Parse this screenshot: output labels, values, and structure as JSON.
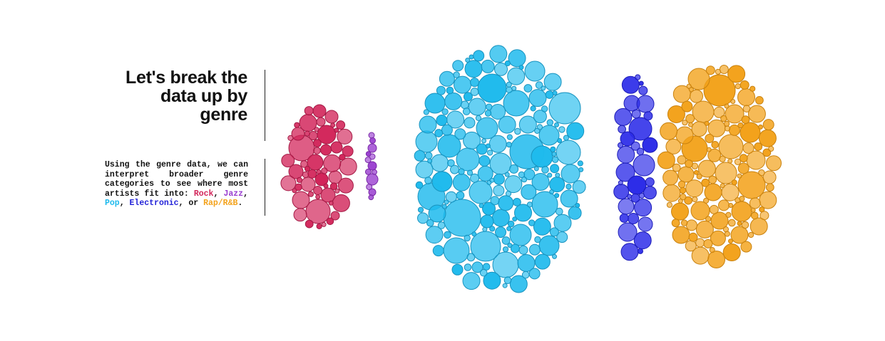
{
  "heading": {
    "line1": "Let's break the",
    "line2": "data up by",
    "line3": "genre"
  },
  "description": {
    "intro": "Using the genre data, we can interpret broader genre categories to see where most artists fit into: ",
    "rock": "Rock",
    "sep1": ", ",
    "jazz": "Jazz",
    "sep2": ", ",
    "pop": "Pop",
    "sep3": ", ",
    "electronic": "Electronic",
    "sep4": ", or ",
    "rap": "Rap/R&B",
    "end": "."
  },
  "genres": [
    {
      "id": "rock",
      "name": "Rock",
      "color": "#d2255a",
      "stroke": "#a41a45"
    },
    {
      "id": "jazz",
      "name": "Jazz",
      "color": "#9a3fd0",
      "stroke": "#7a2aa8"
    },
    {
      "id": "pop",
      "name": "Pop",
      "color": "#1ebaed",
      "stroke": "#1893bf"
    },
    {
      "id": "electronic",
      "name": "Electronic",
      "color": "#2b2be8",
      "stroke": "#1c1cb8"
    },
    {
      "id": "rap",
      "name": "Rap/R&B",
      "color": "#f3a21b",
      "stroke": "#c9820f"
    }
  ]
}
